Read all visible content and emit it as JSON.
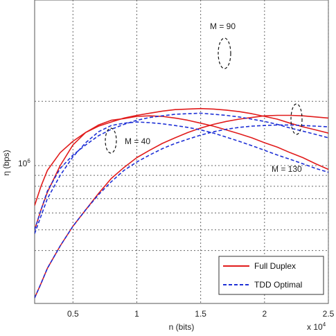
{
  "chart_data": {
    "type": "line",
    "xlabel": "n (bits)",
    "ylabel": "η (bps)",
    "x_exponent_label": "x 10",
    "x_exponent_power": "4",
    "y_tick_label": "10",
    "y_tick_power": "6",
    "xlim": [
      0.2,
      2.5
    ],
    "x_ticks": [
      "0.5",
      "1",
      "1.5",
      "2",
      "2.5"
    ],
    "ylog": true,
    "grid": true,
    "legend_position": "bottom-right",
    "legend": [
      {
        "label": "Full Duplex",
        "style": "solid",
        "color": "#e11b1b"
      },
      {
        "label": "TDD Optimal",
        "style": "dashed",
        "color": "#1d2fd6"
      }
    ],
    "annotations": [
      {
        "text": "M = 90"
      },
      {
        "text": "M = 40"
      },
      {
        "text": "M = 130"
      }
    ],
    "series": [
      {
        "style": "solid",
        "color": "#e11b1b",
        "x": [
          0.2,
          0.25,
          0.3,
          0.4,
          0.5,
          0.6,
          0.7,
          0.8,
          0.9,
          1.0,
          1.1,
          1.2,
          1.3,
          1.4,
          1.5,
          1.6,
          1.7,
          1.8,
          1.9,
          2.0,
          2.1,
          2.2,
          2.3,
          2.4,
          2.5
        ],
        "y": [
          0.65,
          0.8,
          0.95,
          1.15,
          1.3,
          1.43,
          1.53,
          1.6,
          1.67,
          1.72,
          1.76,
          1.8,
          1.83,
          1.84,
          1.85,
          1.84,
          1.82,
          1.79,
          1.75,
          1.7,
          1.65,
          1.58,
          1.52,
          1.47,
          1.42
        ]
      },
      {
        "style": "solid",
        "color": "#e11b1b",
        "x": [
          0.2,
          0.25,
          0.3,
          0.4,
          0.5,
          0.6,
          0.7,
          0.8,
          0.9,
          1.0,
          1.1,
          1.2,
          1.3,
          1.4,
          1.5,
          1.6,
          1.7,
          1.8,
          1.9,
          2.0,
          2.1,
          2.2,
          2.3,
          2.4,
          2.5
        ],
        "y": [
          0.5,
          0.62,
          0.75,
          1.0,
          1.25,
          1.43,
          1.55,
          1.63,
          1.66,
          1.7,
          1.71,
          1.7,
          1.67,
          1.63,
          1.58,
          1.53,
          1.47,
          1.41,
          1.35,
          1.28,
          1.22,
          1.15,
          1.09,
          1.02,
          0.96
        ]
      },
      {
        "style": "solid",
        "color": "#e11b1b",
        "x": [
          0.2,
          0.25,
          0.3,
          0.4,
          0.5,
          0.6,
          0.7,
          0.8,
          0.9,
          1.0,
          1.1,
          1.2,
          1.3,
          1.4,
          1.5,
          1.6,
          1.7,
          1.8,
          1.9,
          2.0,
          2.1,
          2.2,
          2.3,
          2.4,
          2.5
        ],
        "y": [
          0.24,
          0.28,
          0.33,
          0.42,
          0.52,
          0.62,
          0.74,
          0.87,
          0.98,
          1.09,
          1.18,
          1.27,
          1.35,
          1.43,
          1.5,
          1.56,
          1.61,
          1.65,
          1.68,
          1.71,
          1.72,
          1.72,
          1.71,
          1.69,
          1.67
        ]
      },
      {
        "style": "dashed",
        "color": "#1d2fd6",
        "x": [
          0.2,
          0.25,
          0.3,
          0.4,
          0.5,
          0.6,
          0.7,
          0.8,
          0.9,
          1.0,
          1.1,
          1.2,
          1.3,
          1.4,
          1.5,
          1.6,
          1.7,
          1.8,
          1.9,
          2.0,
          2.1,
          2.2,
          2.3,
          2.4,
          2.5
        ],
        "y": [
          0.5,
          0.62,
          0.76,
          0.97,
          1.12,
          1.25,
          1.38,
          1.48,
          1.56,
          1.63,
          1.68,
          1.71,
          1.74,
          1.75,
          1.76,
          1.74,
          1.72,
          1.69,
          1.65,
          1.61,
          1.56,
          1.5,
          1.45,
          1.4,
          1.35
        ]
      },
      {
        "style": "dashed",
        "color": "#1d2fd6",
        "x": [
          0.2,
          0.25,
          0.3,
          0.4,
          0.5,
          0.6,
          0.7,
          0.8,
          0.9,
          1.0,
          1.1,
          1.2,
          1.3,
          1.4,
          1.5,
          1.6,
          1.7,
          1.8,
          1.9,
          2.0,
          2.1,
          2.2,
          2.3,
          2.4,
          2.5
        ],
        "y": [
          0.48,
          0.58,
          0.7,
          0.9,
          1.1,
          1.28,
          1.44,
          1.54,
          1.58,
          1.6,
          1.59,
          1.57,
          1.54,
          1.51,
          1.47,
          1.42,
          1.36,
          1.3,
          1.24,
          1.18,
          1.12,
          1.07,
          1.02,
          0.97,
          0.93
        ]
      },
      {
        "style": "dashed",
        "color": "#1d2fd6",
        "x": [
          0.2,
          0.25,
          0.3,
          0.4,
          0.5,
          0.6,
          0.7,
          0.8,
          0.9,
          1.0,
          1.1,
          1.2,
          1.3,
          1.4,
          1.5,
          1.6,
          1.7,
          1.8,
          1.9,
          2.0,
          2.1,
          2.2,
          2.3,
          2.4,
          2.5
        ],
        "y": [
          0.24,
          0.28,
          0.33,
          0.42,
          0.52,
          0.62,
          0.73,
          0.84,
          0.95,
          1.04,
          1.12,
          1.2,
          1.27,
          1.33,
          1.39,
          1.44,
          1.48,
          1.51,
          1.53,
          1.54,
          1.55,
          1.55,
          1.54,
          1.53,
          1.52
        ]
      }
    ]
  }
}
